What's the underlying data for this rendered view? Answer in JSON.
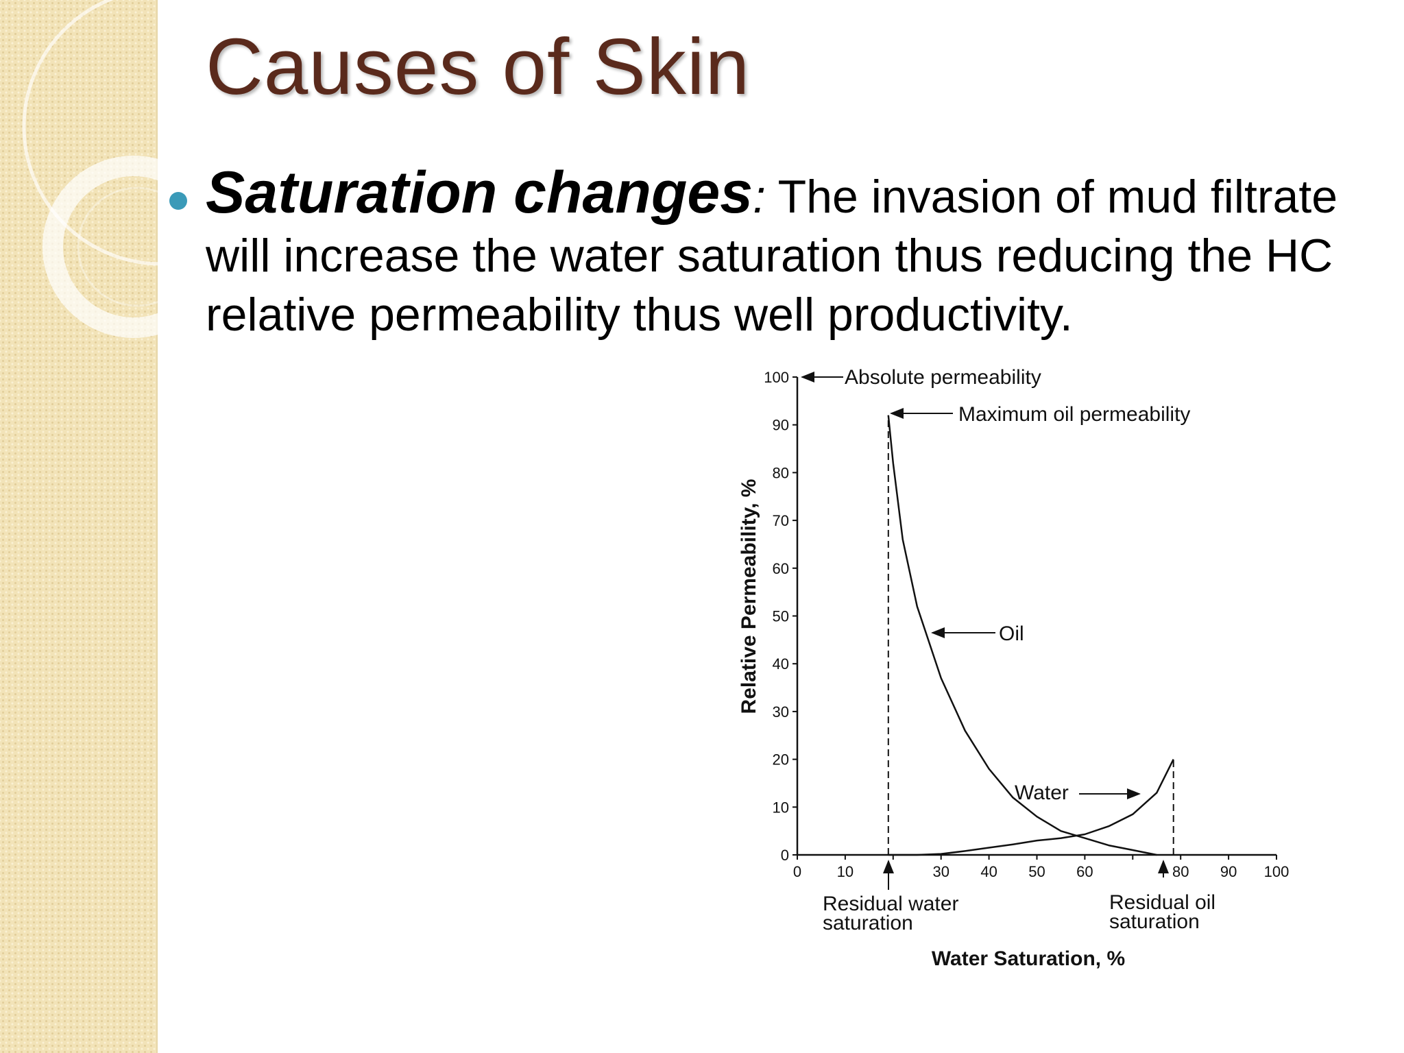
{
  "slide": {
    "title": "Causes of Skin",
    "bullet": {
      "term": "Saturation changes",
      "colon": ":",
      "text": " The invasion of mud filtrate will increase the water saturation thus reducing the HC relative permeability thus well productivity."
    }
  },
  "colors": {
    "title": "#5a2a1c",
    "bullet": "#3a9ab8",
    "sidebar": "#f2e3b8"
  },
  "chart_data": {
    "type": "line",
    "xlabel": "Water Saturation, %",
    "ylabel": "Relative Permeability, %",
    "xlim": [
      0,
      100
    ],
    "ylim": [
      0,
      100
    ],
    "x_ticks": [
      {
        "value": 0,
        "label": "0"
      },
      {
        "value": 10,
        "label": "10"
      },
      {
        "value": 30,
        "label": "30"
      },
      {
        "value": 40,
        "label": "40"
      },
      {
        "value": 50,
        "label": "50"
      },
      {
        "value": 60,
        "label": "60"
      },
      {
        "value": 80,
        "label": "80"
      },
      {
        "value": 90,
        "label": "90"
      },
      {
        "value": 100,
        "label": "100"
      }
    ],
    "x_minor_ticks": [
      20,
      70
    ],
    "y_ticks": [
      0,
      10,
      20,
      30,
      40,
      50,
      60,
      70,
      80,
      90,
      100
    ],
    "series": [
      {
        "name": "Oil",
        "x": [
          19,
          20,
          22,
          25,
          30,
          35,
          40,
          45,
          50,
          55,
          60,
          65,
          70,
          75
        ],
        "y": [
          92,
          82,
          66,
          52,
          37,
          26,
          18,
          12,
          8,
          5,
          3.5,
          2,
          1,
          0
        ]
      },
      {
        "name": "Water",
        "x": [
          19,
          25,
          30,
          35,
          40,
          45,
          50,
          55,
          60,
          65,
          70,
          75,
          78.5
        ],
        "y": [
          0,
          0,
          0.2,
          0.8,
          1.5,
          2.2,
          3,
          3.5,
          4.3,
          6,
          8.5,
          13,
          20
        ]
      }
    ],
    "reference_lines": [
      {
        "x": 19,
        "y_top": 92,
        "label": "Residual water saturation"
      },
      {
        "x": 78.5,
        "y_top": 20,
        "label": "Residual oil saturation"
      }
    ],
    "annotations": {
      "absolute_permeability": "Absolute permeability",
      "maximum_oil_permeability": "Maximum oil permeability",
      "oil": "Oil",
      "water": "Water",
      "residual_water_1": "Residual water",
      "residual_water_2": "saturation",
      "residual_oil_1": "Residual oil",
      "residual_oil_2": "saturation"
    }
  }
}
